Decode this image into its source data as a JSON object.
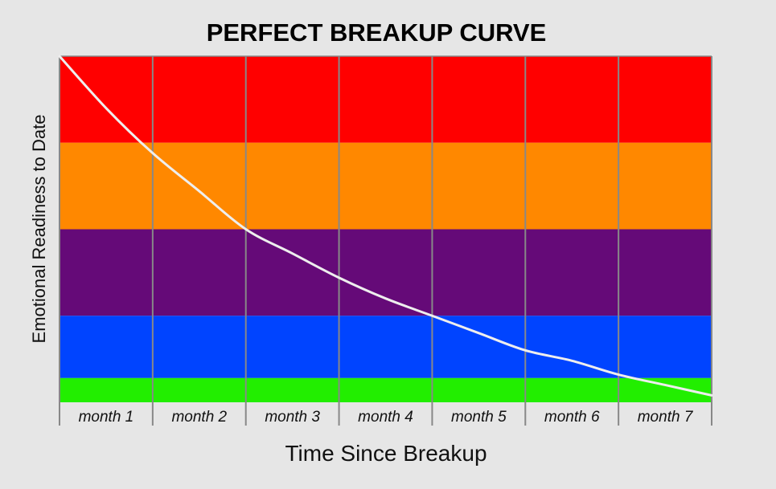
{
  "chart_data": {
    "type": "line",
    "title": "PERFECT BREAKUP CURVE",
    "xlabel": "Time Since Breakup",
    "ylabel": "Emotional Readiness to Date",
    "categories": [
      "month 1",
      "month 2",
      "month 3",
      "month 4",
      "month 5",
      "month 6",
      "month 7"
    ],
    "xlim": [
      0,
      7
    ],
    "ylim": [
      0,
      100
    ],
    "grid": true,
    "legend": "none",
    "bands": [
      {
        "from": 75,
        "to": 100,
        "color": "#ff0000"
      },
      {
        "from": 50,
        "to": 75,
        "color": "#ff8800"
      },
      {
        "from": 25,
        "to": 50,
        "color": "#650a78"
      },
      {
        "from": 7,
        "to": 25,
        "color": "#0044ff"
      },
      {
        "from": 0,
        "to": 7,
        "color": "#22ee00"
      }
    ],
    "series": [
      {
        "color": "#eeeeee",
        "x": [
          0,
          0.5,
          1,
          1.5,
          2,
          2.5,
          3,
          3.5,
          4,
          4.5,
          5,
          5.5,
          6,
          6.5,
          7
        ],
        "y": [
          100,
          85,
          72,
          61,
          50,
          43,
          36,
          30,
          25,
          20,
          15,
          12,
          8,
          5,
          2
        ]
      }
    ]
  }
}
